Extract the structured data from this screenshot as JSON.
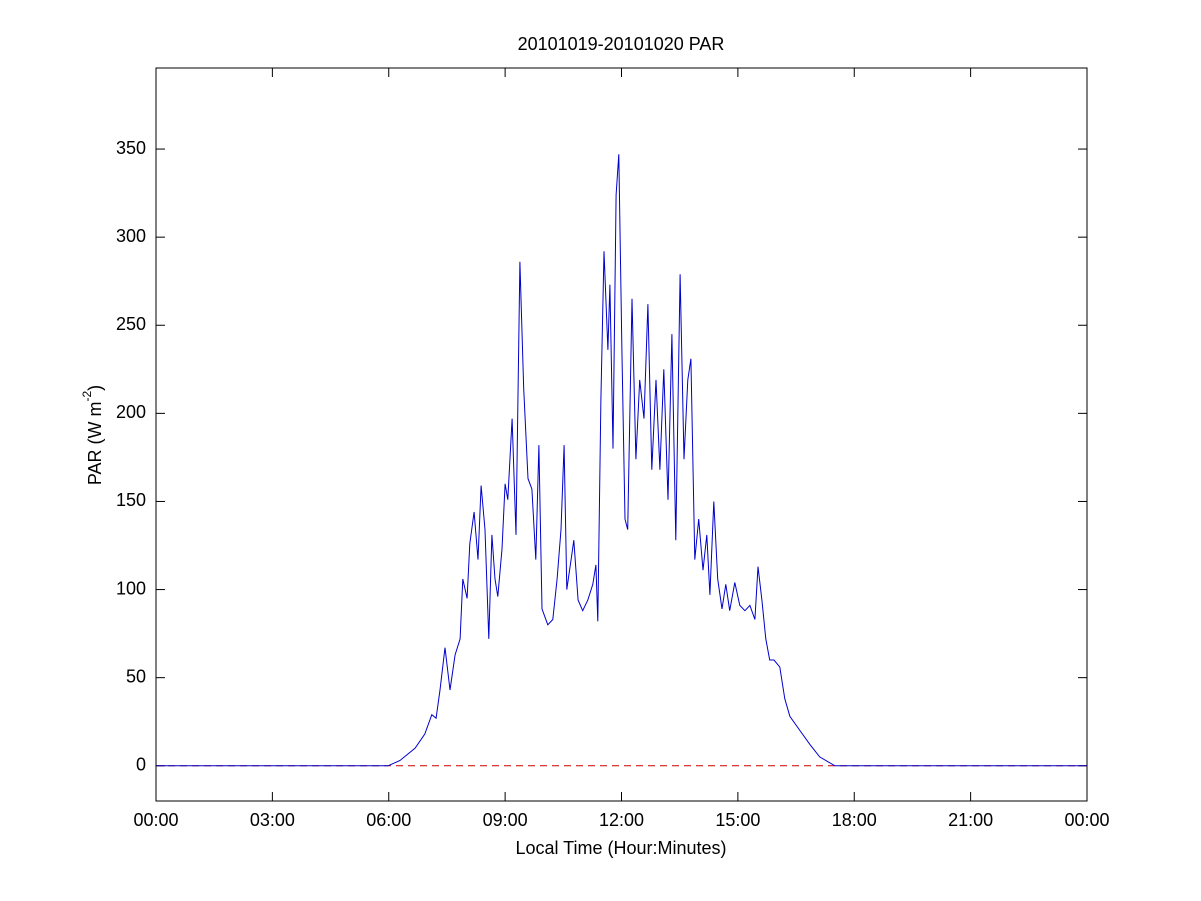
{
  "chart_data": {
    "type": "line",
    "title": "20101019-20101020 PAR",
    "xlabel": "Local Time (Hour:Minutes)",
    "ylabel": {
      "text": "PAR (W m",
      "sup": "-2",
      "end": ")"
    },
    "xlim": [
      0,
      24
    ],
    "ylim": [
      -20,
      396
    ],
    "xticks": [
      {
        "value": 0,
        "label": "00:00"
      },
      {
        "value": 3,
        "label": "03:00"
      },
      {
        "value": 6,
        "label": "06:00"
      },
      {
        "value": 9,
        "label": "09:00"
      },
      {
        "value": 12,
        "label": "12:00"
      },
      {
        "value": 15,
        "label": "15:00"
      },
      {
        "value": 18,
        "label": "18:00"
      },
      {
        "value": 21,
        "label": "21:00"
      },
      {
        "value": 24,
        "label": "00:00"
      }
    ],
    "yticks": [
      0,
      50,
      100,
      150,
      200,
      250,
      300,
      350
    ],
    "grid": false,
    "reference_line": {
      "value": 0,
      "color": "#cc0000",
      "style": "dashed"
    },
    "series": [
      {
        "color": "#0000cc",
        "x": [
          0,
          5.98,
          6.29,
          6.68,
          6.93,
          7.11,
          7.22,
          7.32,
          7.45,
          7.58,
          7.71,
          7.84,
          7.91,
          8.02,
          8.09,
          8.2,
          8.3,
          8.38,
          8.48,
          8.58,
          8.66,
          8.74,
          8.81,
          8.92,
          9.0,
          9.07,
          9.18,
          9.28,
          9.38,
          9.48,
          9.59,
          9.69,
          9.79,
          9.87,
          9.95,
          10.1,
          10.23,
          10.34,
          10.44,
          10.52,
          10.59,
          10.7,
          10.77,
          10.88,
          11.0,
          11.13,
          11.26,
          11.34,
          11.39,
          11.47,
          11.55,
          11.65,
          11.7,
          11.78,
          11.86,
          11.93,
          12.01,
          12.09,
          12.16,
          12.27,
          12.37,
          12.47,
          12.58,
          12.68,
          12.78,
          12.89,
          12.99,
          13.09,
          13.2,
          13.3,
          13.4,
          13.51,
          13.61,
          13.71,
          13.79,
          13.89,
          13.99,
          14.1,
          14.2,
          14.28,
          14.38,
          14.48,
          14.59,
          14.69,
          14.79,
          14.92,
          15.05,
          15.18,
          15.31,
          15.44,
          15.52,
          15.62,
          15.72,
          15.82,
          15.93,
          16.08,
          16.21,
          16.34,
          16.6,
          16.86,
          17.11,
          17.5,
          24
        ],
        "values": [
          0,
          0,
          3,
          10,
          18,
          29,
          27,
          43,
          67,
          43,
          63,
          72,
          106,
          95,
          126,
          144,
          117,
          159,
          134,
          72,
          131,
          106,
          96,
          123,
          160,
          151,
          197,
          131,
          286,
          214,
          163,
          157,
          117,
          182,
          89,
          80,
          83,
          106,
          134,
          182,
          100,
          117,
          128,
          94,
          88,
          94,
          103,
          114,
          82,
          208,
          292,
          236,
          273,
          180,
          324,
          347,
          236,
          140,
          134,
          265,
          174,
          219,
          197,
          262,
          168,
          219,
          168,
          225,
          151,
          245,
          128,
          279,
          174,
          219,
          231,
          117,
          140,
          111,
          131,
          97,
          150,
          106,
          89,
          103,
          88,
          104,
          91,
          88,
          91,
          83,
          113,
          94,
          72,
          60,
          60,
          56,
          38,
          28,
          20,
          12,
          5,
          0,
          0
        ]
      }
    ]
  }
}
